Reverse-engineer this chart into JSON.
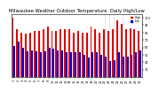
{
  "title": "Milwaukee Weather Outdoor Temperature  Daily High/Low",
  "title_fontsize": 3.8,
  "background_color": "#ffffff",
  "bar_width": 0.4,
  "tick_fontsize": 2.5,
  "xlabel_fontsize": 2.5,
  "ylim": [
    20,
    105
  ],
  "yticks": [
    30,
    40,
    50,
    60,
    70,
    80,
    90,
    100
  ],
  "legend_labels": [
    "High",
    "Low"
  ],
  "legend_colors": [
    "#ff0000",
    "#0000ff"
  ],
  "dotted_lines_idx": [
    21,
    22,
    23,
    25
  ],
  "dates": [
    "1",
    "2",
    "3",
    "4",
    "5",
    "6",
    "7",
    "8",
    "9",
    "10",
    "11",
    "12",
    "13",
    "14",
    "15",
    "16",
    "17",
    "18",
    "19",
    "20",
    "21",
    "22",
    "23",
    "24",
    "25",
    "26",
    "27",
    "28",
    "29",
    "30"
  ],
  "highs": [
    100,
    84,
    80,
    78,
    80,
    82,
    82,
    84,
    88,
    82,
    82,
    84,
    84,
    84,
    80,
    82,
    80,
    80,
    88,
    84,
    80,
    84,
    82,
    84,
    96,
    92,
    84,
    86,
    84,
    82
  ],
  "lows": [
    62,
    68,
    60,
    55,
    56,
    55,
    54,
    55,
    60,
    58,
    56,
    56,
    54,
    53,
    53,
    53,
    50,
    46,
    53,
    54,
    50,
    48,
    42,
    43,
    53,
    48,
    48,
    50,
    53,
    56
  ]
}
